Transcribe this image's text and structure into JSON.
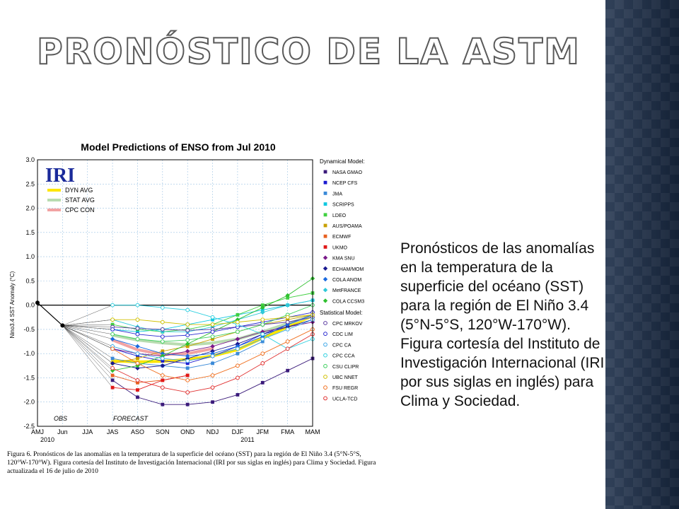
{
  "slide": {
    "title": "Pronóstico de la ASTM",
    "body_text": "Pronósticos de las anomalías en la temperatura de la superficie del océano (SST) para la región de El Niño 3.4 (5°N-5°S, 120°W-170°W). Figura cortesía del Instituto de Investigación Internacional (IRI por sus siglas en inglés) para Clima y Sociedad.",
    "caption": "Figura 6. Pronósticos de las anomalías en la temperatura de la superficie del océano (SST) para la región de El Niño 3.4 (5°N-5°S, 120°W-170°W). Figura cortesía del Instituto de Investigación Internacional (IRI por sus siglas en inglés) para Clima y Sociedad. Figura actualizada el 16 de julio de 2010"
  },
  "chart_data": {
    "type": "line",
    "title": "Model Predictions of ENSO from Jul 2010",
    "logo": "IRI",
    "ylabel": "Nino3.4 SST Anomaly (°C)",
    "ylim": [
      -2.5,
      3.0
    ],
    "yticks": [
      3.0,
      2.5,
      2.0,
      1.5,
      1.0,
      0.5,
      0.0,
      -0.5,
      -1.0,
      -1.5,
      -2.0,
      -2.5
    ],
    "categories": [
      "AMJ",
      "Jun",
      "JJA",
      "JAS",
      "ASO",
      "SON",
      "OND",
      "NDJ",
      "DJF",
      "JFM",
      "FMA",
      "MAM"
    ],
    "year_labels": [
      {
        "label": "2010",
        "index": 0
      },
      {
        "label": "2011",
        "index": 8
      }
    ],
    "period_labels": {
      "obs": "OBS",
      "forecast": "FORECAST"
    },
    "observed": [
      0.05,
      -0.42
    ],
    "avg_legend": [
      {
        "name": "DYN AVG",
        "color": "#ffe600"
      },
      {
        "name": "STAT AVG",
        "color": "#b8dcb0"
      },
      {
        "name": "CPC CON",
        "color": "#f2a3a3"
      }
    ],
    "avg_series": [
      {
        "name": "DYN AVG",
        "color": "#ffe600",
        "values": [
          -1.15,
          -1.17,
          -1.16,
          -1.12,
          -1.05,
          -0.92,
          -0.68,
          -0.45,
          -0.22
        ]
      },
      {
        "name": "STAT AVG",
        "color": "#b8dcb0",
        "values": [
          -0.62,
          -0.72,
          -0.78,
          -0.82,
          -0.78,
          -0.7,
          -0.55,
          -0.38,
          -0.22
        ]
      },
      {
        "name": "CPC CON",
        "color": "#f2a3a3",
        "values": [
          -0.72,
          -0.92,
          -1.02,
          -1.0,
          -0.9
        ]
      }
    ],
    "dynamical_header": "Dynamical Model:",
    "dynamical": [
      {
        "name": "NASA GMAO",
        "color": "#3a1a7a",
        "marker": "square",
        "values": [
          -1.55,
          -1.9,
          -2.05,
          -2.05,
          -2.0,
          -1.85,
          -1.6,
          -1.35,
          -1.1
        ]
      },
      {
        "name": "NCEP CFS",
        "color": "#1a1ad0",
        "marker": "square",
        "values": [
          -0.9,
          -1.05,
          -1.15,
          -1.2,
          -1.05,
          -0.85,
          -0.6,
          -0.4,
          -0.2
        ]
      },
      {
        "name": "JMA",
        "color": "#3a8ad8",
        "marker": "square",
        "values": [
          -1.1,
          -1.2,
          -1.25,
          -1.3,
          -1.2,
          -1.0,
          -0.75
        ]
      },
      {
        "name": "SCRIPPS",
        "color": "#10c8e0",
        "marker": "square",
        "values": [
          -0.5,
          -0.55,
          -0.5,
          -0.4,
          -0.3,
          -0.2,
          -0.1,
          0.0,
          0.1
        ]
      },
      {
        "name": "LDEO",
        "color": "#40d040",
        "marker": "square",
        "values": [
          -0.4,
          -0.5,
          -0.55,
          -0.5,
          -0.4,
          -0.2,
          0.0,
          0.15,
          0.25
        ]
      },
      {
        "name": "AUS/POAMA",
        "color": "#c8a000",
        "marker": "square",
        "values": [
          -1.2,
          -1.1,
          -0.95,
          -0.85,
          -0.7,
          -0.55,
          -0.4,
          -0.3,
          -0.2
        ]
      },
      {
        "name": "ECMWF",
        "color": "#e86020",
        "marker": "square",
        "values": [
          -1.45,
          -1.6,
          -1.55,
          -1.45
        ]
      },
      {
        "name": "UKMO",
        "color": "#e01818",
        "marker": "square",
        "values": [
          -1.7,
          -1.75,
          -1.55,
          -1.45
        ]
      },
      {
        "name": "KMA SNU",
        "color": "#7a1a8a",
        "marker": "diamond",
        "values": [
          -0.9,
          -1.0,
          -1.05,
          -0.95,
          -0.85,
          -0.7,
          -0.55,
          -0.45,
          -0.35
        ]
      },
      {
        "name": "ECHAM/MOM",
        "color": "#1a1a90",
        "marker": "diamond",
        "values": [
          -1.2,
          -1.3,
          -1.25,
          -1.1,
          -0.95,
          -0.8,
          -0.6,
          -0.45,
          -0.3
        ]
      },
      {
        "name": "COLA ANOM",
        "color": "#1a6ae0",
        "marker": "diamond",
        "values": [
          -0.7,
          -0.85,
          -1.0,
          -1.05,
          -1.0,
          -0.85,
          -0.65,
          -0.4,
          -0.2
        ]
      },
      {
        "name": "MetFRANCE",
        "color": "#30c8d8",
        "marker": "diamond",
        "values": [
          -0.3,
          -0.45,
          -0.55,
          -0.55,
          -0.45,
          -0.3,
          -0.15,
          0.0,
          0.1
        ]
      },
      {
        "name": "COLA CCSM3",
        "color": "#30c030",
        "marker": "diamond",
        "values": [
          -1.35,
          -1.25,
          -1.05,
          -0.8,
          -0.55,
          -0.3,
          -0.05,
          0.2,
          0.55
        ]
      }
    ],
    "statistical_header": "Statistical Model:",
    "statistical": [
      {
        "name": "CPC MRKOV",
        "color": "#5a3aa0",
        "marker": "circle",
        "values": [
          -0.45,
          -0.48,
          -0.5,
          -0.52,
          -0.5,
          -0.45,
          -0.4,
          -0.35,
          -0.25
        ]
      },
      {
        "name": "CDC LIM",
        "color": "#2a2ad0",
        "marker": "circle",
        "values": [
          -0.5,
          -0.6,
          -0.65,
          -0.62,
          -0.55,
          -0.45,
          -0.35,
          -0.25,
          -0.15
        ]
      },
      {
        "name": "CPC CA",
        "color": "#40a8e8",
        "marker": "circle",
        "values": [
          -0.85,
          -1.0,
          -1.1,
          -1.15,
          -1.05,
          -0.9,
          -0.7,
          -0.5,
          -0.3
        ]
      },
      {
        "name": "CPC CCA",
        "color": "#30d0e0",
        "marker": "circle",
        "values": [
          0.0,
          0.0,
          -0.05,
          -0.1,
          -0.25,
          -0.4,
          -0.6,
          -0.9,
          -0.7
        ]
      },
      {
        "name": "CSU CLIPR",
        "color": "#40d060",
        "marker": "circle",
        "values": [
          -0.6,
          -0.7,
          -0.75,
          -0.72,
          -0.65,
          -0.55,
          -0.4,
          -0.2,
          0.0
        ]
      },
      {
        "name": "UBC NNET",
        "color": "#d0c000",
        "marker": "circle",
        "values": [
          -0.3,
          -0.3,
          -0.35,
          -0.4,
          -0.4,
          -0.35,
          -0.3,
          -0.25,
          -0.2
        ]
      },
      {
        "name": "FSU REGR",
        "color": "#f07020",
        "marker": "circle",
        "values": [
          -0.9,
          -1.2,
          -1.45,
          -1.55,
          -1.45,
          -1.25,
          -1.0,
          -0.75,
          -0.5
        ]
      },
      {
        "name": "UCLA-TCD",
        "color": "#e03030",
        "marker": "circle",
        "values": [
          -1.3,
          -1.55,
          -1.7,
          -1.8,
          -1.7,
          -1.5,
          -1.2,
          -0.9,
          -0.6
        ]
      }
    ]
  }
}
